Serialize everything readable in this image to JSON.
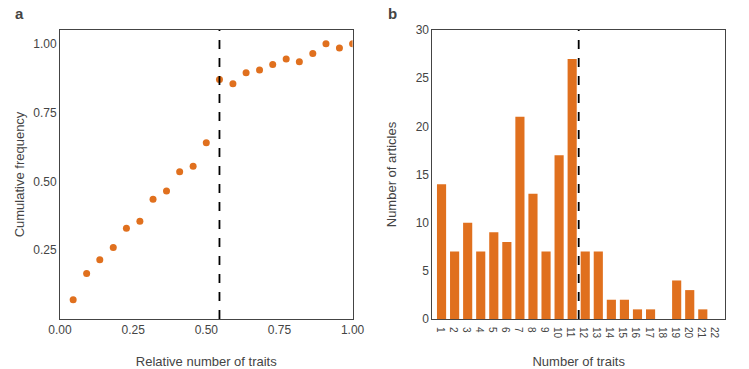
{
  "chart_data": [
    {
      "type": "scatter",
      "title": "a",
      "x_label": "Relative number of traits",
      "y_label": "Cumulative frequency",
      "x": [
        0.045,
        0.091,
        0.136,
        0.182,
        0.227,
        0.273,
        0.318,
        0.364,
        0.409,
        0.455,
        0.5,
        0.545,
        0.591,
        0.636,
        0.682,
        0.727,
        0.773,
        0.818,
        0.864,
        0.909,
        0.955,
        1.0
      ],
      "values": [
        0.07,
        0.165,
        0.215,
        0.26,
        0.33,
        0.355,
        0.435,
        0.465,
        0.535,
        0.555,
        0.64,
        0.87,
        0.855,
        0.895,
        0.905,
        0.925,
        0.945,
        0.935,
        0.965,
        1.0,
        0.985,
        1.0
      ],
      "color": "#E0701E",
      "marker": "circle",
      "vline_x": 0.545,
      "line_style": "dashed",
      "xlim": [
        0.0,
        1.0
      ],
      "xticks": [
        {
          "value": 0,
          "label": "0.00"
        },
        0.25,
        {
          "value": 0.5,
          "label": "0.50"
        },
        0.75,
        {
          "value": 1,
          "label": "1.00"
        }
      ],
      "ylim": [
        0.0,
        1.05
      ],
      "yticks": [
        0.25,
        {
          "value": 0.5,
          "label": "0.50"
        },
        0.75,
        {
          "value": 1,
          "label": "1.00"
        }
      ],
      "grid": false
    },
    {
      "type": "bar",
      "title": "b",
      "x_label": "Number of traits",
      "y_label": "Number of articles",
      "x": [
        1,
        2,
        3,
        4,
        5,
        6,
        7,
        8,
        9,
        10,
        11,
        12,
        13,
        14,
        15,
        16,
        17,
        19,
        20,
        21,
        22
      ],
      "values": [
        14,
        7,
        10,
        7,
        9,
        8,
        21,
        13,
        7,
        17,
        27,
        7,
        7,
        2,
        2,
        1,
        1,
        4,
        3,
        1,
        0
      ],
      "color": "#E0701E",
      "vline_x": 11.5,
      "line_style": "dashed",
      "xlim": [
        0.3,
        22.7
      ],
      "xticks": [
        1,
        2,
        3,
        4,
        5,
        6,
        7,
        8,
        9,
        10,
        11,
        12,
        13,
        14,
        15,
        16,
        17,
        18,
        19,
        20,
        21,
        22
      ],
      "ylim": [
        0,
        30
      ],
      "yticks": [
        0,
        5,
        10,
        15,
        20,
        25,
        30
      ],
      "grid": false
    }
  ]
}
